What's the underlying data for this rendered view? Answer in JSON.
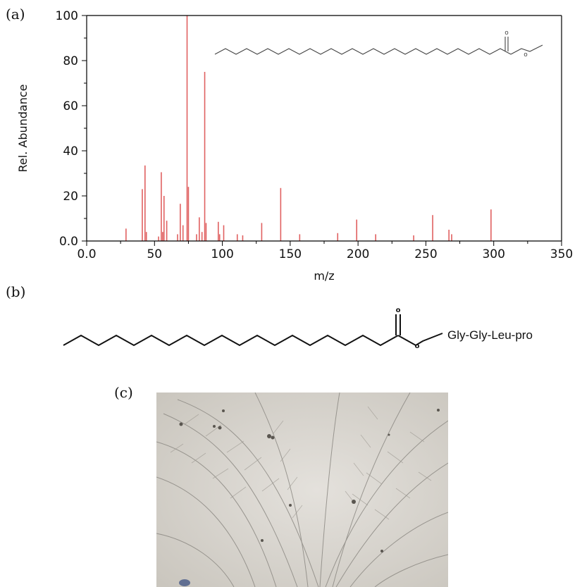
{
  "panels": {
    "a": "(a)",
    "b": "(b)",
    "c": "(c)"
  },
  "chart_data": {
    "type": "bar",
    "xlabel": "m/z",
    "ylabel": "Rel. Abundance",
    "xlim": [
      0,
      350
    ],
    "ylim": [
      0,
      100
    ],
    "x_ticks": [
      "0.0",
      "50",
      "100",
      "150",
      "200",
      "250",
      "300",
      "350"
    ],
    "y_ticks": [
      "0.0",
      "20",
      "40",
      "60",
      "80",
      "100"
    ],
    "grid": false,
    "color": "#e06060",
    "peaks": [
      {
        "mz": 29,
        "value": 5.5
      },
      {
        "mz": 41,
        "value": 23
      },
      {
        "mz": 43,
        "value": 33.5
      },
      {
        "mz": 44,
        "value": 4
      },
      {
        "mz": 53,
        "value": 2
      },
      {
        "mz": 55,
        "value": 30.5
      },
      {
        "mz": 56,
        "value": 4
      },
      {
        "mz": 57,
        "value": 20
      },
      {
        "mz": 59,
        "value": 9
      },
      {
        "mz": 67,
        "value": 3
      },
      {
        "mz": 69,
        "value": 16.5
      },
      {
        "mz": 71,
        "value": 7
      },
      {
        "mz": 74,
        "value": 100
      },
      {
        "mz": 75,
        "value": 24
      },
      {
        "mz": 81,
        "value": 3
      },
      {
        "mz": 83,
        "value": 10.5
      },
      {
        "mz": 85,
        "value": 4
      },
      {
        "mz": 87,
        "value": 75
      },
      {
        "mz": 88,
        "value": 8
      },
      {
        "mz": 97,
        "value": 8.5
      },
      {
        "mz": 98,
        "value": 3
      },
      {
        "mz": 101,
        "value": 7
      },
      {
        "mz": 111,
        "value": 3
      },
      {
        "mz": 115,
        "value": 2.5
      },
      {
        "mz": 129,
        "value": 8
      },
      {
        "mz": 143,
        "value": 23.5
      },
      {
        "mz": 157,
        "value": 3
      },
      {
        "mz": 185,
        "value": 3.5
      },
      {
        "mz": 199,
        "value": 9.5
      },
      {
        "mz": 213,
        "value": 3
      },
      {
        "mz": 241,
        "value": 2.5
      },
      {
        "mz": 255,
        "value": 11.5
      },
      {
        "mz": 267,
        "value": 5
      },
      {
        "mz": 269,
        "value": 3
      },
      {
        "mz": 298,
        "value": 14
      }
    ]
  },
  "panel_b": {
    "substituent": "Gly-Gly-Leu-pro",
    "carbonyl_o": "o",
    "ester_o": "o"
  },
  "panel_a_structure": {
    "carbonyl_o": "o",
    "ester_o": "o"
  }
}
